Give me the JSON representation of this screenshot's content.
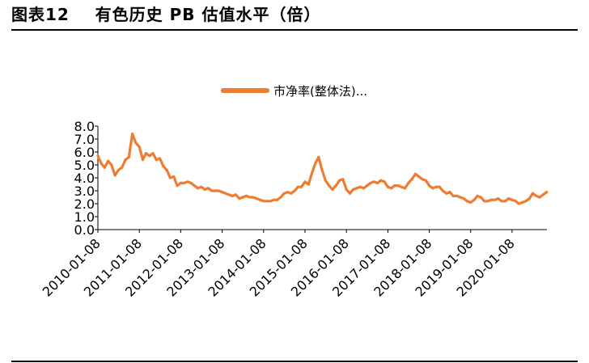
{
  "figure": {
    "title": "图表12    有色历史 PB 估值水平（倍）"
  },
  "colors": {
    "series": "#ED7D31",
    "axis": "#000000",
    "rule": "#000000"
  },
  "chart_data": {
    "type": "line",
    "title": "",
    "xlabel": "",
    "ylabel": "",
    "ylim": [
      0,
      8
    ],
    "yticks": [
      "8.0",
      "7.0",
      "6.0",
      "5.0",
      "4.0",
      "3.0",
      "2.0",
      "1.0",
      "0.0"
    ],
    "xticks": [
      "2010-01-08",
      "2011-01-08",
      "2012-01-08",
      "2013-01-08",
      "2014-01-08",
      "2015-01-08",
      "2016-01-08",
      "2017-01-08",
      "2018-01-08",
      "2019-01-08",
      "2020-01-08"
    ],
    "grid": false,
    "legend": {
      "position": "top",
      "entries": [
        "市净率(整体法)..."
      ]
    },
    "series": [
      {
        "name": "市净率(整体法)...",
        "x": [
          "2010-01-08",
          "2010-02-08",
          "2010-03-08",
          "2010-04-08",
          "2010-05-08",
          "2010-06-08",
          "2010-07-08",
          "2010-08-08",
          "2010-09-08",
          "2010-10-08",
          "2010-11-08",
          "2010-12-08",
          "2011-01-08",
          "2011-02-08",
          "2011-03-08",
          "2011-04-08",
          "2011-05-08",
          "2011-06-08",
          "2011-07-08",
          "2011-08-08",
          "2011-09-08",
          "2011-10-08",
          "2011-11-08",
          "2011-12-08",
          "2012-01-08",
          "2012-02-08",
          "2012-03-08",
          "2012-04-08",
          "2012-05-08",
          "2012-06-08",
          "2012-07-08",
          "2012-08-08",
          "2012-09-08",
          "2012-10-08",
          "2012-11-08",
          "2012-12-08",
          "2013-01-08",
          "2013-02-08",
          "2013-03-08",
          "2013-04-08",
          "2013-05-08",
          "2013-06-08",
          "2013-07-08",
          "2013-08-08",
          "2013-09-08",
          "2013-10-08",
          "2013-11-08",
          "2013-12-08",
          "2014-01-08",
          "2014-02-08",
          "2014-03-08",
          "2014-04-08",
          "2014-05-08",
          "2014-06-08",
          "2014-07-08",
          "2014-08-08",
          "2014-09-08",
          "2014-10-08",
          "2014-11-08",
          "2014-12-08",
          "2015-01-08",
          "2015-02-08",
          "2015-03-08",
          "2015-04-08",
          "2015-05-08",
          "2015-06-08",
          "2015-07-08",
          "2015-08-08",
          "2015-09-08",
          "2015-10-08",
          "2015-11-08",
          "2015-12-08",
          "2016-01-08",
          "2016-02-08",
          "2016-03-08",
          "2016-04-08",
          "2016-05-08",
          "2016-06-08",
          "2016-07-08",
          "2016-08-08",
          "2016-09-08",
          "2016-10-08",
          "2016-11-08",
          "2016-12-08",
          "2017-01-08",
          "2017-02-08",
          "2017-03-08",
          "2017-04-08",
          "2017-05-08",
          "2017-06-08",
          "2017-07-08",
          "2017-08-08",
          "2017-09-08",
          "2017-10-08",
          "2017-11-08",
          "2017-12-08",
          "2018-01-08",
          "2018-02-08",
          "2018-03-08",
          "2018-04-08",
          "2018-05-08",
          "2018-06-08",
          "2018-07-08",
          "2018-08-08",
          "2018-09-08",
          "2018-10-08",
          "2018-11-08",
          "2018-12-08",
          "2019-01-08",
          "2019-02-08",
          "2019-03-08",
          "2019-04-08",
          "2019-05-08",
          "2019-06-08",
          "2019-07-08",
          "2019-08-08",
          "2019-09-08",
          "2019-10-08",
          "2019-11-08",
          "2019-12-08",
          "2020-01-08",
          "2020-02-08",
          "2020-03-08",
          "2020-04-08",
          "2020-05-08",
          "2020-06-08",
          "2020-07-08",
          "2020-08-08",
          "2020-09-08",
          "2020-10-08",
          "2020-11-08"
        ],
        "values": [
          5.7,
          5.1,
          4.8,
          5.3,
          5.0,
          4.2,
          4.6,
          4.8,
          5.4,
          5.6,
          7.4,
          6.7,
          6.4,
          5.4,
          5.9,
          5.7,
          5.9,
          5.4,
          5.5,
          4.9,
          4.6,
          4.0,
          4.1,
          3.4,
          3.6,
          3.6,
          3.7,
          3.6,
          3.4,
          3.2,
          3.3,
          3.1,
          3.2,
          3.0,
          3.0,
          3.0,
          2.9,
          2.8,
          2.7,
          2.6,
          2.7,
          2.4,
          2.5,
          2.6,
          2.5,
          2.5,
          2.4,
          2.3,
          2.2,
          2.2,
          2.2,
          2.3,
          2.3,
          2.5,
          2.8,
          2.9,
          2.8,
          3.0,
          3.3,
          3.3,
          3.7,
          3.5,
          4.3,
          5.1,
          5.6,
          4.6,
          3.8,
          3.4,
          3.1,
          3.4,
          3.8,
          3.9,
          3.1,
          2.8,
          3.1,
          3.2,
          3.3,
          3.2,
          3.4,
          3.6,
          3.7,
          3.6,
          3.8,
          3.7,
          3.3,
          3.2,
          3.4,
          3.4,
          3.3,
          3.2,
          3.6,
          3.9,
          4.3,
          4.1,
          3.9,
          3.8,
          3.4,
          3.2,
          3.3,
          3.3,
          3.0,
          2.8,
          2.9,
          2.6,
          2.6,
          2.5,
          2.4,
          2.2,
          2.1,
          2.3,
          2.6,
          2.5,
          2.2,
          2.2,
          2.3,
          2.3,
          2.4,
          2.2,
          2.2,
          2.4,
          2.3,
          2.2,
          2.0,
          2.1,
          2.2,
          2.4,
          2.8,
          2.6,
          2.5,
          2.7,
          2.9
        ]
      }
    ]
  }
}
